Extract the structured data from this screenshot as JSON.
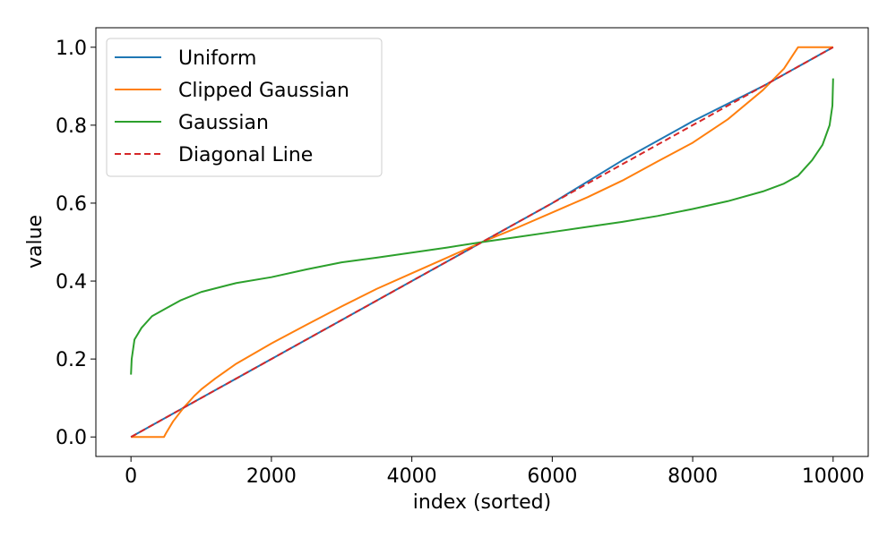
{
  "chart_data": {
    "type": "line",
    "xlabel": "index (sorted)",
    "ylabel": "value",
    "xlim": [
      -500,
      10500
    ],
    "ylim": [
      -0.05,
      1.05
    ],
    "xticks": [
      0,
      2000,
      4000,
      6000,
      8000,
      10000
    ],
    "yticks": [
      0.0,
      0.2,
      0.4,
      0.6,
      0.8,
      1.0
    ],
    "xtick_labels": [
      "0",
      "2000",
      "4000",
      "6000",
      "8000",
      "10000"
    ],
    "ytick_labels": [
      "0.0",
      "0.2",
      "0.4",
      "0.6",
      "0.8",
      "1.0"
    ],
    "grid": false,
    "legend_position": "upper-left",
    "series": [
      {
        "name": "Uniform",
        "color": "#1f77b4",
        "style": "solid",
        "points": [
          [
            0,
            0.0
          ],
          [
            1000,
            0.1
          ],
          [
            2000,
            0.2
          ],
          [
            3000,
            0.3
          ],
          [
            4000,
            0.4
          ],
          [
            5000,
            0.5
          ],
          [
            6000,
            0.6
          ],
          [
            7000,
            0.71
          ],
          [
            8000,
            0.81
          ],
          [
            9000,
            0.9
          ],
          [
            10000,
            1.0
          ]
        ]
      },
      {
        "name": "Clipped Gaussian",
        "color": "#ff7f0e",
        "style": "solid",
        "points": [
          [
            0,
            0.0
          ],
          [
            470,
            0.0
          ],
          [
            500,
            0.01
          ],
          [
            600,
            0.04
          ],
          [
            750,
            0.075
          ],
          [
            900,
            0.105
          ],
          [
            1000,
            0.122
          ],
          [
            1200,
            0.15
          ],
          [
            1500,
            0.188
          ],
          [
            2000,
            0.24
          ],
          [
            2500,
            0.288
          ],
          [
            3000,
            0.335
          ],
          [
            3500,
            0.38
          ],
          [
            4000,
            0.42
          ],
          [
            4500,
            0.46
          ],
          [
            5000,
            0.5
          ],
          [
            5500,
            0.537
          ],
          [
            6000,
            0.576
          ],
          [
            6500,
            0.615
          ],
          [
            7000,
            0.658
          ],
          [
            7500,
            0.707
          ],
          [
            8000,
            0.755
          ],
          [
            8500,
            0.815
          ],
          [
            9000,
            0.89
          ],
          [
            9300,
            0.945
          ],
          [
            9500,
            1.0
          ],
          [
            10000,
            1.0
          ]
        ]
      },
      {
        "name": "Gaussian",
        "color": "#2ca02c",
        "style": "solid",
        "points": [
          [
            0,
            0.16
          ],
          [
            10,
            0.2
          ],
          [
            50,
            0.25
          ],
          [
            150,
            0.28
          ],
          [
            300,
            0.31
          ],
          [
            500,
            0.33
          ],
          [
            700,
            0.35
          ],
          [
            1000,
            0.372
          ],
          [
            1500,
            0.395
          ],
          [
            2000,
            0.41
          ],
          [
            2500,
            0.43
          ],
          [
            3000,
            0.448
          ],
          [
            3500,
            0.46
          ],
          [
            4000,
            0.473
          ],
          [
            4500,
            0.486
          ],
          [
            5000,
            0.5
          ],
          [
            5500,
            0.513
          ],
          [
            6000,
            0.526
          ],
          [
            6500,
            0.539
          ],
          [
            7000,
            0.552
          ],
          [
            7500,
            0.567
          ],
          [
            8000,
            0.585
          ],
          [
            8500,
            0.605
          ],
          [
            9000,
            0.63
          ],
          [
            9300,
            0.65
          ],
          [
            9500,
            0.67
          ],
          [
            9700,
            0.71
          ],
          [
            9850,
            0.75
          ],
          [
            9950,
            0.8
          ],
          [
            9990,
            0.85
          ],
          [
            10000,
            0.92
          ]
        ]
      },
      {
        "name": "Diagonal Line",
        "color": "#d62728",
        "style": "dashed",
        "points": [
          [
            0,
            0.0
          ],
          [
            10000,
            1.0
          ]
        ]
      }
    ]
  }
}
